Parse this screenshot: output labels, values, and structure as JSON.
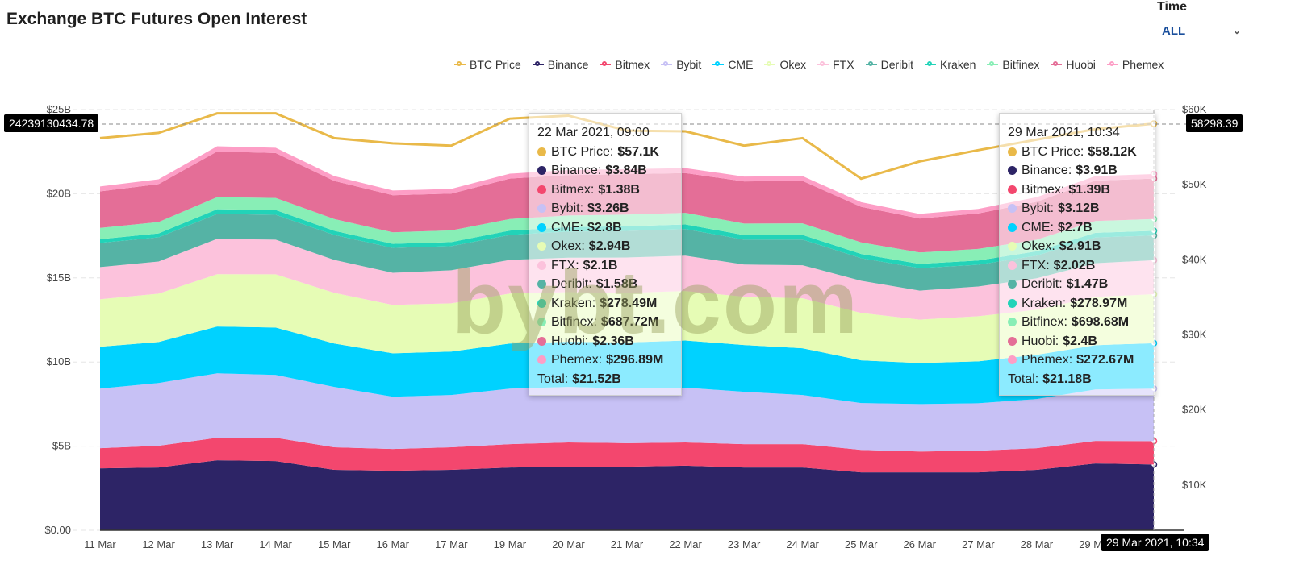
{
  "header": {
    "title": "Exchange BTC Futures Open Interest",
    "time_label": "Time",
    "time_value": "ALL",
    "time_icon": "chevron-down-icon"
  },
  "watermark": "bybt.com",
  "crosshair": {
    "left_value": "24239130434.78",
    "right_value": "58298.39",
    "x_value": "29 Mar 2021, 10:34"
  },
  "chart_data": {
    "type": "area",
    "title": "Exchange BTC Futures Open Interest",
    "stacked": true,
    "x": [
      "11 Mar",
      "12 Mar",
      "13 Mar",
      "14 Mar",
      "15 Mar",
      "16 Mar",
      "17 Mar",
      "19 Mar",
      "20 Mar",
      "21 Mar",
      "22 Mar",
      "23 Mar",
      "24 Mar",
      "25 Mar",
      "26 Mar",
      "27 Mar",
      "28 Mar",
      "29 Mar",
      "29 Mar 2021, 10:34"
    ],
    "x_tick_labels": [
      "11 Mar",
      "12 Mar",
      "13 Mar",
      "14 Mar",
      "15 Mar",
      "16 Mar",
      "17 Mar",
      "19 Mar",
      "20 Mar",
      "21 Mar",
      "22 Mar",
      "23 Mar",
      "24 Mar",
      "25 Mar",
      "26 Mar",
      "27 Mar",
      "28 Mar",
      "29 Mar"
    ],
    "y_left": {
      "unit": "USD billions",
      "range": [
        0,
        25
      ],
      "ticks": [
        0,
        5,
        10,
        15,
        20,
        25
      ],
      "tick_labels": [
        "$0.00",
        "$5B",
        "$10B",
        "$15B",
        "$20B",
        "$25B"
      ]
    },
    "y_right": {
      "unit": "USD thousands",
      "range": [
        0,
        60
      ],
      "ticks": [
        10,
        20,
        30,
        40,
        50,
        60
      ],
      "tick_labels": [
        "$10K",
        "$20K",
        "$30K",
        "$40K",
        "$50K",
        "$60K"
      ]
    },
    "grid": true,
    "legend_position": "top-right",
    "line_series": {
      "name": "BTC Price",
      "axis": "right",
      "color": "#e9b949",
      "values": [
        56.2,
        56.9,
        59.5,
        59.5,
        56.2,
        55.5,
        55.2,
        58.8,
        59.2,
        57.2,
        57.1,
        55.2,
        56.2,
        50.8,
        53.1,
        54.6,
        56.0,
        57.4,
        58.12
      ]
    },
    "series": [
      {
        "name": "Binance",
        "color": "#2d2466",
        "values": [
          3.68,
          3.73,
          4.16,
          4.11,
          3.59,
          3.54,
          3.59,
          3.73,
          3.78,
          3.78,
          3.84,
          3.73,
          3.73,
          3.44,
          3.44,
          3.44,
          3.59,
          3.97,
          3.91
        ]
      },
      {
        "name": "Bitmex",
        "color": "#f3476e",
        "values": [
          1.2,
          1.29,
          1.34,
          1.39,
          1.34,
          1.29,
          1.34,
          1.39,
          1.44,
          1.4,
          1.38,
          1.39,
          1.39,
          1.34,
          1.24,
          1.29,
          1.29,
          1.34,
          1.39
        ]
      },
      {
        "name": "Bybit",
        "color": "#c7c1f5",
        "values": [
          3.54,
          3.73,
          3.83,
          3.73,
          3.59,
          3.11,
          3.11,
          3.3,
          3.3,
          3.25,
          3.26,
          3.11,
          2.92,
          2.78,
          2.82,
          2.82,
          2.92,
          3.06,
          3.12
        ]
      },
      {
        "name": "CME",
        "color": "#00d2ff",
        "values": [
          2.49,
          2.44,
          2.78,
          2.82,
          2.58,
          2.58,
          2.58,
          2.68,
          2.68,
          2.73,
          2.8,
          2.78,
          2.78,
          2.54,
          2.44,
          2.49,
          2.63,
          2.63,
          2.7
        ]
      },
      {
        "name": "Okex",
        "color": "#e6fcb5",
        "values": [
          2.82,
          2.87,
          3.11,
          3.16,
          3.01,
          2.87,
          2.87,
          2.97,
          2.95,
          2.95,
          2.94,
          2.87,
          2.97,
          2.82,
          2.58,
          2.68,
          2.68,
          2.87,
          2.91
        ]
      },
      {
        "name": "FTX",
        "color": "#fcc2dc",
        "values": [
          1.91,
          1.91,
          2.1,
          2.06,
          1.96,
          1.91,
          1.96,
          2.0,
          2.05,
          2.1,
          2.1,
          1.91,
          1.96,
          1.91,
          1.72,
          1.77,
          1.87,
          2.0,
          2.02
        ]
      },
      {
        "name": "Deribit",
        "color": "#55b3a5",
        "values": [
          1.44,
          1.44,
          1.48,
          1.48,
          1.48,
          1.48,
          1.44,
          1.48,
          1.55,
          1.58,
          1.58,
          1.48,
          1.53,
          1.34,
          1.34,
          1.29,
          1.34,
          1.53,
          1.47
        ]
      },
      {
        "name": "Kraken",
        "color": "#22d3b8",
        "values": [
          0.22,
          0.23,
          0.28,
          0.28,
          0.25,
          0.24,
          0.24,
          0.26,
          0.27,
          0.28,
          0.278,
          0.27,
          0.27,
          0.25,
          0.25,
          0.25,
          0.26,
          0.28,
          0.279
        ]
      },
      {
        "name": "Bitfinex",
        "color": "#88eeb6",
        "values": [
          0.67,
          0.68,
          0.72,
          0.72,
          0.7,
          0.69,
          0.69,
          0.69,
          0.69,
          0.69,
          0.688,
          0.69,
          0.69,
          0.69,
          0.68,
          0.69,
          0.69,
          0.7,
          0.699
        ]
      },
      {
        "name": "Huobi",
        "color": "#e46e97",
        "values": [
          2.17,
          2.25,
          2.71,
          2.67,
          2.26,
          2.2,
          2.19,
          2.4,
          2.4,
          2.4,
          2.36,
          2.5,
          2.52,
          2.11,
          2.02,
          2.11,
          2.25,
          2.4,
          2.4
        ]
      },
      {
        "name": "Phemex",
        "color": "#fd9ec6",
        "values": [
          0.29,
          0.29,
          0.31,
          0.31,
          0.29,
          0.28,
          0.28,
          0.29,
          0.3,
          0.3,
          0.297,
          0.29,
          0.29,
          0.28,
          0.27,
          0.27,
          0.28,
          0.27,
          0.273
        ]
      }
    ]
  },
  "tooltips": [
    {
      "title": "22 Mar 2021, 09:00",
      "rows": [
        {
          "label": "BTC Price:",
          "value": "$57.1K",
          "color": "#e9b949"
        },
        {
          "label": "Binance:",
          "value": "$3.84B",
          "color": "#2d2466"
        },
        {
          "label": "Bitmex:",
          "value": "$1.38B",
          "color": "#f3476e"
        },
        {
          "label": "Bybit:",
          "value": "$3.26B",
          "color": "#c7c1f5"
        },
        {
          "label": "CME:",
          "value": "$2.8B",
          "color": "#00d2ff"
        },
        {
          "label": "Okex:",
          "value": "$2.94B",
          "color": "#e6fcb5"
        },
        {
          "label": "FTX:",
          "value": "$2.1B",
          "color": "#fcc2dc"
        },
        {
          "label": "Deribit:",
          "value": "$1.58B",
          "color": "#55b3a5"
        },
        {
          "label": "Kraken:",
          "value": "$278.49M",
          "color": "#22d3b8"
        },
        {
          "label": "Bitfinex:",
          "value": "$687.72M",
          "color": "#88eeb6"
        },
        {
          "label": "Huobi:",
          "value": "$2.36B",
          "color": "#e46e97"
        },
        {
          "label": "Phemex:",
          "value": "$296.89M",
          "color": "#fd9ec6"
        }
      ],
      "total_label": "Total:",
      "total_value": "$21.52B"
    },
    {
      "title": "29 Mar 2021, 10:34",
      "rows": [
        {
          "label": "BTC Price:",
          "value": "$58.12K",
          "color": "#e9b949"
        },
        {
          "label": "Binance:",
          "value": "$3.91B",
          "color": "#2d2466"
        },
        {
          "label": "Bitmex:",
          "value": "$1.39B",
          "color": "#f3476e"
        },
        {
          "label": "Bybit:",
          "value": "$3.12B",
          "color": "#c7c1f5"
        },
        {
          "label": "CME:",
          "value": "$2.7B",
          "color": "#00d2ff"
        },
        {
          "label": "Okex:",
          "value": "$2.91B",
          "color": "#e6fcb5"
        },
        {
          "label": "FTX:",
          "value": "$2.02B",
          "color": "#fcc2dc"
        },
        {
          "label": "Deribit:",
          "value": "$1.47B",
          "color": "#55b3a5"
        },
        {
          "label": "Kraken:",
          "value": "$278.97M",
          "color": "#22d3b8"
        },
        {
          "label": "Bitfinex:",
          "value": "$698.68M",
          "color": "#88eeb6"
        },
        {
          "label": "Huobi:",
          "value": "$2.4B",
          "color": "#e46e97"
        },
        {
          "label": "Phemex:",
          "value": "$272.67M",
          "color": "#fd9ec6"
        }
      ],
      "total_label": "Total:",
      "total_value": "$21.18B"
    }
  ]
}
